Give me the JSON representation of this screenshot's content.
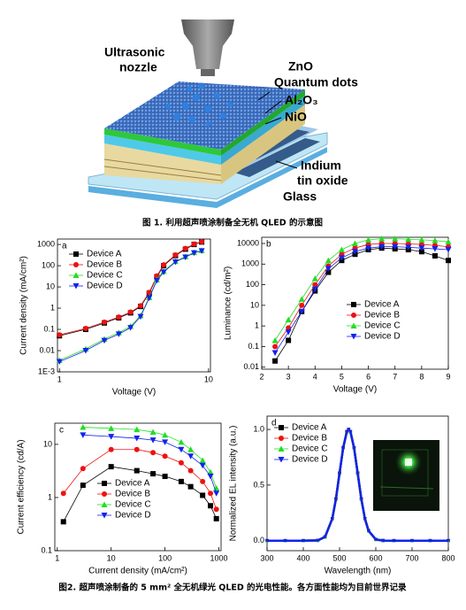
{
  "figure1": {
    "labels": [
      "Ultrasonic",
      "nozzle",
      "ZnO",
      "Quantum dots",
      "Al₂O₃",
      "NiO",
      "Indium",
      "tin oxide",
      "Glass"
    ],
    "caption": "图 1. 利用超声喷涂制备全无机 QLED 的示意图"
  },
  "chart_data": [
    {
      "type": "line",
      "label": "a",
      "xlabel": "Voltage (V)",
      "ylabel": "Current density (mA/cm²)",
      "xlog": true,
      "ylog": true,
      "xlim": [
        0.97,
        10.3
      ],
      "ylim": [
        0.001,
        1800
      ],
      "xticks": [
        1,
        10
      ],
      "yticks": [
        {
          "value": 0.001,
          "label": "1E-3"
        },
        0.01,
        0.1,
        1,
        10,
        100,
        1000
      ],
      "x": [
        1,
        1.5,
        2,
        2.5,
        3,
        3.5,
        4,
        4.5,
        5,
        6,
        7,
        8,
        9
      ],
      "series": [
        {
          "name": "Device A",
          "color": "#000000",
          "marker": "square",
          "values": [
            0.05,
            0.1,
            0.2,
            0.35,
            0.6,
            1.2,
            5,
            30,
            100,
            300,
            600,
            1000,
            1300
          ]
        },
        {
          "name": "Device B",
          "color": "#ee1111",
          "marker": "circle",
          "values": [
            0.055,
            0.11,
            0.22,
            0.38,
            0.65,
            1.3,
            5.5,
            33,
            110,
            320,
            650,
            1050,
            1350
          ]
        },
        {
          "name": "Device C",
          "color": "#22dd22",
          "marker": "triangle",
          "values": [
            0.0035,
            0.012,
            0.035,
            0.07,
            0.14,
            0.45,
            3.2,
            22,
            55,
            160,
            270,
            420,
            520
          ]
        },
        {
          "name": "Device D",
          "color": "#1122ee",
          "marker": "down",
          "values": [
            0.003,
            0.01,
            0.03,
            0.06,
            0.12,
            0.4,
            3,
            20,
            50,
            150,
            250,
            400,
            500
          ]
        }
      ]
    },
    {
      "type": "line",
      "label": "b",
      "xlabel": "Voltage (V)",
      "ylabel": "Luminance (cd/m²)",
      "xlog": false,
      "ylog": true,
      "xlim": [
        2,
        9
      ],
      "ylim": [
        0.008,
        20000
      ],
      "xticks": [
        2,
        3,
        4,
        5,
        6,
        7,
        8,
        9
      ],
      "yticks": [
        0.01,
        0.1,
        1,
        10,
        100,
        1000,
        10000
      ],
      "x": [
        2.5,
        3,
        3.5,
        4,
        4.5,
        5,
        5.5,
        6,
        6.5,
        7,
        7.5,
        8,
        8.5,
        9
      ],
      "series": [
        {
          "name": "Device A",
          "color": "#000000",
          "marker": "square",
          "values": [
            0.02,
            0.2,
            5,
            50,
            400,
            1500,
            3000,
            5000,
            6000,
            5500,
            5000,
            4000,
            2500,
            1500
          ]
        },
        {
          "name": "Device B",
          "color": "#ee1111",
          "marker": "circle",
          "values": [
            0.1,
            0.8,
            10,
            100,
            800,
            3000,
            6000,
            9000,
            10000,
            10000,
            9500,
            9000,
            8000,
            7000
          ]
        },
        {
          "name": "Device C",
          "color": "#22dd22",
          "marker": "triangle",
          "values": [
            0.2,
            2,
            20,
            200,
            1500,
            5000,
            10000,
            15000,
            17000,
            17000,
            16000,
            15000,
            14000,
            12000
          ]
        },
        {
          "name": "Device D",
          "color": "#1122ee",
          "marker": "down",
          "values": [
            0.05,
            0.5,
            5,
            60,
            600,
            2000,
            4000,
            6000,
            7000,
            7000,
            6500,
            6000,
            5500,
            5000
          ]
        }
      ]
    },
    {
      "type": "line",
      "label": "c",
      "xlabel": "Current density (mA/cm²)",
      "ylabel": "Current efficiency (cd/A)",
      "xlog": true,
      "ylog": true,
      "xlim": [
        0.9,
        1100
      ],
      "ylim": [
        0.1,
        25
      ],
      "xticks": [
        1,
        10,
        100,
        1000
      ],
      "yticks": [
        0.1,
        1,
        10
      ],
      "x": [
        1.3,
        3,
        10,
        30,
        60,
        100,
        200,
        300,
        500,
        700,
        900
      ],
      "series": [
        {
          "name": "Device A",
          "color": "#000000",
          "marker": "square",
          "values": [
            0.35,
            1.7,
            3.8,
            3.2,
            2.8,
            2.5,
            2,
            1.6,
            1.1,
            0.7,
            0.4
          ]
        },
        {
          "name": "Device B",
          "color": "#ee1111",
          "marker": "circle",
          "values": [
            1.2,
            3.5,
            8,
            8,
            7,
            6,
            4.5,
            3.2,
            2,
            1.2,
            0.6
          ]
        },
        {
          "name": "Device C",
          "color": "#22dd22",
          "marker": "triangle",
          "values": [
            null,
            21,
            20,
            19,
            17,
            15,
            11,
            8,
            5,
            3,
            1.5
          ]
        },
        {
          "name": "Device D",
          "color": "#1122ee",
          "marker": "down",
          "values": [
            null,
            15,
            14,
            13,
            12,
            11,
            8,
            6,
            4,
            2.5,
            1.2
          ]
        }
      ]
    },
    {
      "type": "line",
      "label": "d",
      "xlabel": "Wavelength (nm)",
      "ylabel": "Normalized EL intensity (a.u.)",
      "xlog": false,
      "ylog": false,
      "xlim": [
        300,
        800
      ],
      "ylim": [
        -0.09,
        1.12
      ],
      "xticks": [
        300,
        400,
        500,
        600,
        700,
        800
      ],
      "yticks": [
        {
          "value": 0,
          "label": "0.0"
        },
        0.5,
        {
          "value": 1,
          "label": "1.0"
        }
      ],
      "x": [
        300,
        350,
        400,
        440,
        460,
        480,
        490,
        500,
        510,
        520,
        525,
        530,
        540,
        550,
        560,
        570,
        580,
        600,
        620,
        650,
        700,
        750,
        800
      ],
      "series": [
        {
          "name": "Device A",
          "color": "#000000",
          "marker": "square",
          "values": [
            0,
            0,
            0,
            0.003,
            0.034,
            0.198,
            0.375,
            0.607,
            0.835,
            0.98,
            1,
            0.98,
            0.835,
            0.607,
            0.375,
            0.198,
            0.089,
            0.011,
            0.001,
            0,
            0,
            0,
            0
          ]
        },
        {
          "name": "Device B",
          "color": "#ee1111",
          "marker": "circle",
          "values": [
            0,
            0,
            0,
            0.003,
            0.034,
            0.198,
            0.375,
            0.607,
            0.835,
            0.98,
            1,
            0.98,
            0.835,
            0.607,
            0.375,
            0.198,
            0.089,
            0.011,
            0.001,
            0,
            0,
            0,
            0
          ]
        },
        {
          "name": "Device C",
          "color": "#22dd22",
          "marker": "triangle",
          "values": [
            0,
            0,
            0,
            0.003,
            0.034,
            0.198,
            0.375,
            0.607,
            0.835,
            0.98,
            1,
            0.98,
            0.835,
            0.607,
            0.375,
            0.198,
            0.089,
            0.011,
            0.001,
            0,
            0,
            0,
            0
          ]
        },
        {
          "name": "Device D",
          "color": "#1122ee",
          "marker": "down",
          "values": [
            0,
            0,
            0,
            0.003,
            0.034,
            0.198,
            0.375,
            0.607,
            0.835,
            0.98,
            1,
            0.98,
            0.835,
            0.607,
            0.375,
            0.198,
            0.089,
            0.011,
            0.001,
            0,
            0,
            0,
            0
          ]
        }
      ]
    }
  ],
  "figure2": {
    "caption": "图2. 超声喷涂制备的 5 mm² 全无机绿光 QLED 的光电性能。各方面性能均为目前世界记录"
  }
}
